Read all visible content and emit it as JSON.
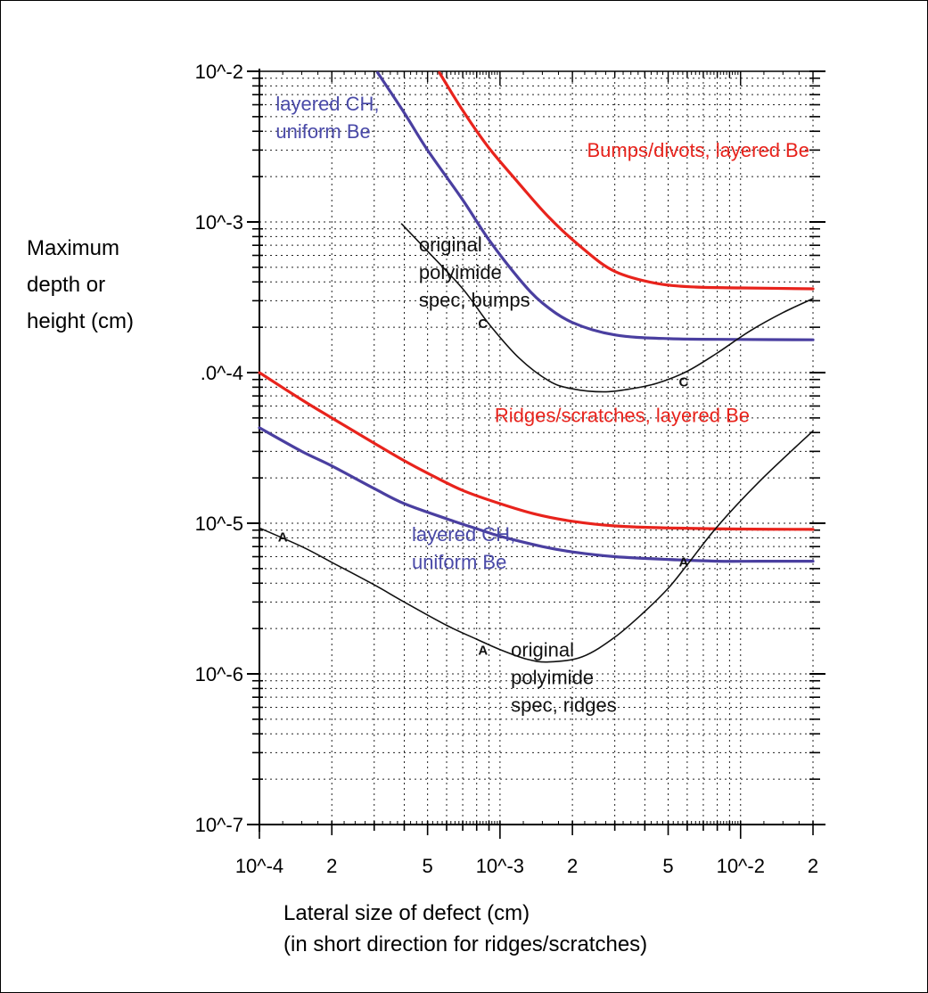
{
  "chart_data": {
    "type": "line",
    "xscale": "log",
    "yscale": "log",
    "xlim": [
      0.0001,
      0.02
    ],
    "ylim": [
      1e-07,
      0.01
    ],
    "grid": true,
    "ylabel_lines": [
      "Maximum",
      "depth or",
      "height (cm)"
    ],
    "xlabel_lines": [
      "Lateral size of defect (cm)",
      "(in short direction for ridges/scratches)"
    ],
    "y_ticks": [
      {
        "value": 0.01,
        "label": "10^-2"
      },
      {
        "value": 0.001,
        "label": "10^-3"
      },
      {
        "value": 0.0001,
        "label": ".0^-4"
      },
      {
        "value": 1e-05,
        "label": "10^-5"
      },
      {
        "value": 1e-06,
        "label": "10^-6"
      },
      {
        "value": 1e-07,
        "label": "10^-7"
      }
    ],
    "x_ticks": [
      {
        "value": 0.0001,
        "label": "10^-4"
      },
      {
        "value": 0.0002,
        "label": "2"
      },
      {
        "value": 0.0005,
        "label": "5"
      },
      {
        "value": 0.001,
        "label": "10^-3"
      },
      {
        "value": 0.002,
        "label": "2"
      },
      {
        "value": 0.005,
        "label": "5"
      },
      {
        "value": 0.01,
        "label": "10^-2"
      },
      {
        "value": 0.02,
        "label": "2"
      }
    ],
    "series": [
      {
        "color": "#e8231c",
        "width": 3.2,
        "points": [
          [
            0.00056,
            0.0098
          ],
          [
            0.0007,
            0.0055
          ],
          [
            0.0009,
            0.0031
          ],
          [
            0.0012,
            0.0018
          ],
          [
            0.0016,
            0.00107
          ],
          [
            0.0022,
            0.00067
          ],
          [
            0.003,
            0.00047
          ],
          [
            0.0045,
            0.00039
          ],
          [
            0.0065,
            0.00037
          ],
          [
            0.01,
            0.000365
          ],
          [
            0.02,
            0.00036
          ]
        ]
      },
      {
        "color": "#4a3fa0",
        "width": 3.2,
        "points": [
          [
            0.00031,
            0.0098
          ],
          [
            0.0004,
            0.0053
          ],
          [
            0.0005,
            0.003
          ],
          [
            0.0007,
            0.0014
          ],
          [
            0.0009,
            0.00076
          ],
          [
            0.0012,
            0.00042
          ],
          [
            0.0015,
            0.00029
          ],
          [
            0.002,
            0.000215
          ],
          [
            0.003,
            0.000178
          ],
          [
            0.005,
            0.000168
          ],
          [
            0.01,
            0.000166
          ],
          [
            0.02,
            0.000165
          ]
        ]
      },
      {
        "color": "#111111",
        "width": 1.6,
        "points": [
          [
            0.00039,
            0.00097
          ],
          [
            0.0005,
            0.00064
          ],
          [
            0.0007,
            0.00036
          ],
          [
            0.0009,
            0.00021
          ],
          [
            0.0012,
            0.000125
          ],
          [
            0.0016,
            8.8e-05
          ],
          [
            0.002,
            7.8e-05
          ],
          [
            0.0027,
            7.45e-05
          ],
          [
            0.0035,
            7.8e-05
          ],
          [
            0.0045,
            8.5e-05
          ],
          [
            0.006,
            0.000102
          ],
          [
            0.008,
            0.000135
          ],
          [
            0.011,
            0.00019
          ],
          [
            0.015,
            0.00025
          ],
          [
            0.02,
            0.00031
          ]
        ]
      },
      {
        "color": "#e8231c",
        "width": 3.2,
        "points": [
          [
            0.0001,
            0.0001
          ],
          [
            0.00015,
            6.6e-05
          ],
          [
            0.0002,
            5e-05
          ],
          [
            0.0003,
            3.4e-05
          ],
          [
            0.0004,
            2.6e-05
          ],
          [
            0.0005,
            2.15e-05
          ],
          [
            0.0007,
            1.65e-05
          ],
          [
            0.001,
            1.35e-05
          ],
          [
            0.0014,
            1.15e-05
          ],
          [
            0.002,
            1.03e-05
          ],
          [
            0.003,
            9.6e-06
          ],
          [
            0.005,
            9.3e-06
          ],
          [
            0.01,
            9.15e-06
          ],
          [
            0.02,
            9.1e-06
          ]
        ]
      },
      {
        "color": "#4a3fa0",
        "width": 3.2,
        "points": [
          [
            0.0001,
            4.3e-05
          ],
          [
            0.00015,
            3e-05
          ],
          [
            0.0002,
            2.4e-05
          ],
          [
            0.0003,
            1.7e-05
          ],
          [
            0.0004,
            1.35e-05
          ],
          [
            0.0006,
            1.07e-05
          ],
          [
            0.0008,
            9.2e-06
          ],
          [
            0.001,
            8.2e-06
          ],
          [
            0.0015,
            7e-06
          ],
          [
            0.002,
            6.45e-06
          ],
          [
            0.003,
            6e-06
          ],
          [
            0.005,
            5.75e-06
          ],
          [
            0.008,
            5.6e-06
          ],
          [
            0.012,
            5.6e-06
          ],
          [
            0.02,
            5.6e-06
          ]
        ]
      },
      {
        "color": "#111111",
        "width": 1.6,
        "points": [
          [
            0.0001,
            9.3e-06
          ],
          [
            0.00015,
            7e-06
          ],
          [
            0.0002,
            5.5e-06
          ],
          [
            0.0003,
            3.9e-06
          ],
          [
            0.0004,
            3e-06
          ],
          [
            0.0006,
            2.1e-06
          ],
          [
            0.0008,
            1.7e-06
          ],
          [
            0.001,
            1.45e-06
          ],
          [
            0.0013,
            1.25e-06
          ],
          [
            0.0016,
            1.2e-06
          ],
          [
            0.0022,
            1.3e-06
          ],
          [
            0.003,
            1.75e-06
          ],
          [
            0.004,
            2.6e-06
          ],
          [
            0.005,
            3.7e-06
          ],
          [
            0.006,
            5.3e-06
          ],
          [
            0.008,
            9.5e-06
          ],
          [
            0.012,
            1.9e-05
          ],
          [
            0.02,
            4.1e-05
          ]
        ]
      }
    ],
    "markers": [
      {
        "label": "C",
        "x": 0.00085,
        "y": 0.000215
      },
      {
        "label": "C",
        "x": 0.0058,
        "y": 8.8e-05
      },
      {
        "label": "A",
        "x": 0.000125,
        "y": 8.2e-06
      },
      {
        "label": "A",
        "x": 0.00085,
        "y": 1.45e-06
      },
      {
        "label": "A",
        "x": 0.0058,
        "y": 5.6e-06
      }
    ],
    "annotations": [
      {
        "lines": [
          "layered CH,",
          "uniform Be"
        ],
        "color": "#4a4aa8",
        "x": 0.000117,
        "y": 0.0055
      },
      {
        "lines": [
          "Bumps/divots, layered Be"
        ],
        "color": "#e8231c",
        "x": 0.0023,
        "y": 0.0027
      },
      {
        "lines": [
          "original",
          "polyimide",
          "spec, bumps"
        ],
        "color": "#111111",
        "x": 0.00046,
        "y": 0.00064
      },
      {
        "lines": [
          "Ridges/scratches, layered Be"
        ],
        "color": "#e8231c",
        "x": 0.00095,
        "y": 4.7e-05
      },
      {
        "lines": [
          "layered CH,",
          "uniform Be"
        ],
        "color": "#4a4aa8",
        "x": 0.00043,
        "y": 7.6e-06
      },
      {
        "lines": [
          "original",
          "polyimide",
          "spec, ridges"
        ],
        "color": "#111111",
        "x": 0.00111,
        "y": 1.3e-06
      }
    ]
  }
}
